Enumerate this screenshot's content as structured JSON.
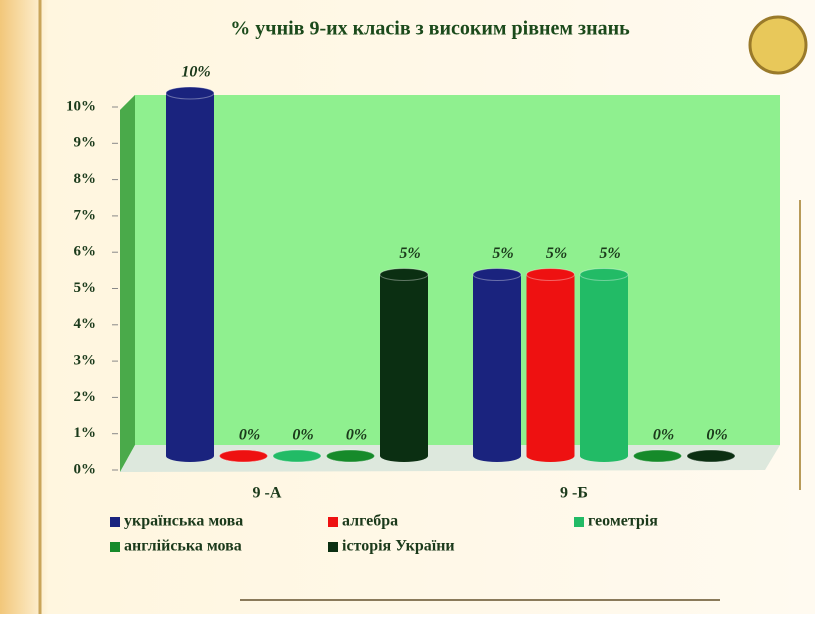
{
  "chart_data": {
    "type": "bar3d",
    "title": "% учнів 9-их класів з високим рівнем знань",
    "categories": [
      "9 -А",
      "9 -Б"
    ],
    "series": [
      {
        "name": "українська мова",
        "color": "#1a237e",
        "values": [
          10,
          5
        ],
        "value_labels": [
          "10%",
          "5%"
        ]
      },
      {
        "name": "алгебра",
        "color": "#ee1111",
        "values": [
          0,
          5
        ],
        "value_labels": [
          "0%",
          "5%"
        ]
      },
      {
        "name": "геометрія",
        "color": "#22bb66",
        "values": [
          0,
          5
        ],
        "value_labels": [
          "0%",
          "5%"
        ]
      },
      {
        "name": "англійська мова",
        "color": "#168a2a",
        "values": [
          0,
          0
        ],
        "value_labels": [
          "0%",
          "0%"
        ]
      },
      {
        "name": "історія України",
        "color": "#0b2f12",
        "values": [
          5,
          0
        ],
        "value_labels": [
          "5%",
          "0%"
        ]
      }
    ],
    "ylim": [
      0,
      10
    ],
    "yticks": [
      {
        "value": 0,
        "label": "0%"
      },
      {
        "value": 1,
        "label": "1%"
      },
      {
        "value": 2,
        "label": "2%"
      },
      {
        "value": 3,
        "label": "3%"
      },
      {
        "value": 4,
        "label": "4%"
      },
      {
        "value": 5,
        "label": "5%"
      },
      {
        "value": 6,
        "label": "6%"
      },
      {
        "value": 7,
        "label": "7%"
      },
      {
        "value": 8,
        "label": "8%"
      },
      {
        "value": 9,
        "label": "9%"
      },
      {
        "value": 10,
        "label": "10%"
      }
    ]
  }
}
